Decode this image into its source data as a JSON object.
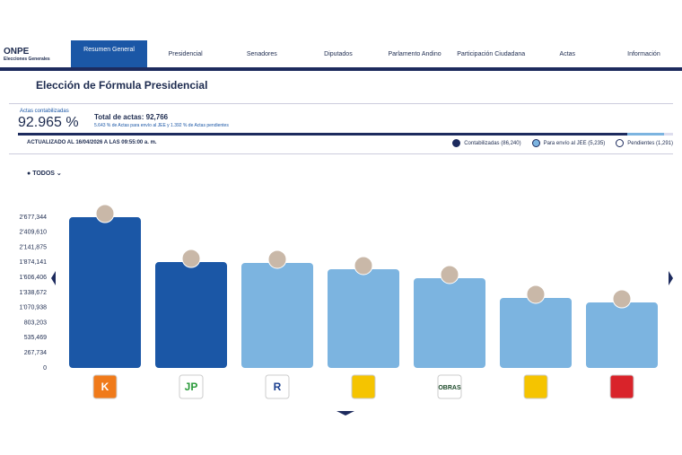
{
  "header": {
    "brand": "ONPE",
    "election": "Elecciones Generales"
  },
  "nav": [
    "Resumen General",
    "Presidencial",
    "Senadores",
    "Diputados",
    "Parlamento Andino",
    "Participación Ciudadana",
    "Actas",
    "Información"
  ],
  "page_title": "Elección de Fórmula Presidencial",
  "summary": {
    "caption": "Actas contabilizadas",
    "percent": "92.965 %",
    "total": "Total de actas: 92,766",
    "detail": "5.643 % de Actas para envío al JEE y 1.392 % de Actas pendientes",
    "updated": "ACTUALIZADO AL 16/04/2026 A LAS 09:55:00 a. m.",
    "progress": [
      92.965,
      5.643,
      1.392
    ],
    "legend": [
      "Contabilizadas (86,240)",
      "Para envío al JEE (5,235)",
      "Pendientes (1,291)"
    ]
  },
  "filter": "TODOS",
  "chart_data": {
    "type": "bar",
    "categories": [
      "K",
      "JP",
      "R",
      null,
      "OBRAS",
      null,
      null
    ],
    "values": [
      2677000,
      1880000,
      1865000,
      1753000,
      1594000,
      1243000,
      1163000
    ],
    "colors": [
      "#1b57a6",
      "#1b57a6",
      "#7cb4e0",
      "#7cb4e0",
      "#7cb4e0",
      "#7cb4e0",
      "#7cb4e0"
    ],
    "ylim": [
      0,
      2677344
    ],
    "yticks": [
      0,
      {
        "value": 267734,
        "label": "267,734"
      },
      {
        "value": 535469,
        "label": "535,469"
      },
      {
        "value": 803203,
        "label": "803,203"
      },
      {
        "value": 1070938,
        "label": "1'070,938"
      },
      {
        "value": 1338672,
        "label": "1'338,672"
      },
      {
        "value": 1606406,
        "label": "1'606,406"
      },
      {
        "value": 1874141,
        "label": "1'874,141"
      },
      {
        "value": 2141875,
        "label": "2'141,875"
      },
      {
        "value": 2409610,
        "label": "2'409,610"
      },
      {
        "value": 2677344,
        "label": "2'677,344"
      }
    ]
  }
}
